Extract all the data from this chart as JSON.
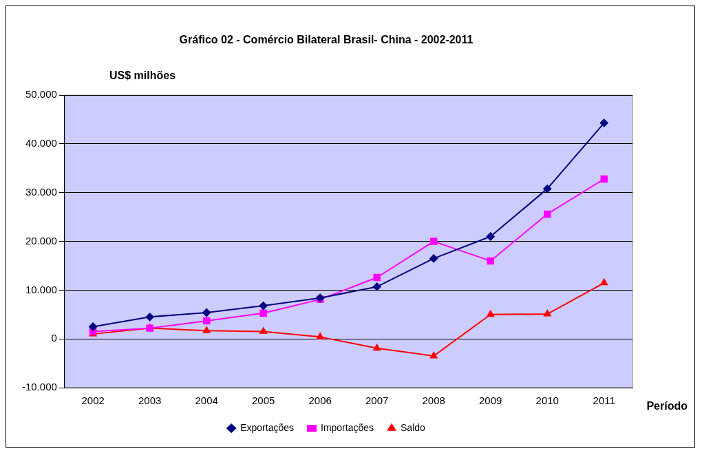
{
  "chart_data": {
    "type": "line",
    "title": "Gráfico 02 - Comércio Bilateral Brasil- China - 2002-2011",
    "ylabel": "US$ milhões",
    "xlabel": "Período",
    "categories": [
      "2002",
      "2003",
      "2004",
      "2005",
      "2006",
      "2007",
      "2008",
      "2009",
      "2010",
      "2011"
    ],
    "series": [
      {
        "name": "Exportações",
        "color": "#000080",
        "marker": "diamond",
        "values": [
          2500,
          4500,
          5400,
          6800,
          8400,
          10700,
          16500,
          21000,
          30800,
          44300
        ]
      },
      {
        "name": "Importações",
        "color": "#ff00ff",
        "marker": "square",
        "values": [
          1500,
          2200,
          3700,
          5300,
          8100,
          12600,
          20000,
          16000,
          25600,
          32800
        ]
      },
      {
        "name": "Saldo",
        "color": "#ff0000",
        "marker": "triangle",
        "values": [
          1000,
          2200,
          1700,
          1500,
          400,
          -1900,
          -3500,
          5000,
          5100,
          11500
        ]
      }
    ],
    "ylim": [
      -10000,
      50000
    ],
    "yticks": [
      {
        "value": -10000,
        "label": "-10.000"
      },
      0,
      {
        "value": 10000,
        "label": "10.000"
      },
      {
        "value": 20000,
        "label": "20.000"
      },
      {
        "value": 30000,
        "label": "30.000"
      },
      {
        "value": 40000,
        "label": "40.000"
      },
      {
        "value": 50000,
        "label": "50.000"
      }
    ],
    "grid": "y",
    "legend": "bottom"
  }
}
